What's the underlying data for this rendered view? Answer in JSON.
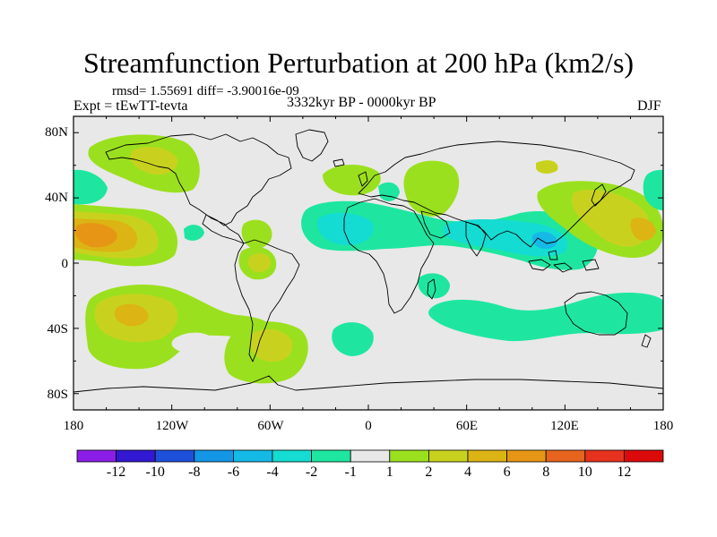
{
  "title": "Streamfunction Perturbation at 200 hPa (km2/s)",
  "stats": "rmsd= 1.55691 diff= -3.90016e-09",
  "expt": "Expt = tEwTT-tevta",
  "period": "3332kyr BP - 0000kyr BP",
  "season": "DJF",
  "y_ticks": [
    "80N",
    "40N",
    "0",
    "40S",
    "80S"
  ],
  "x_ticks": [
    "180",
    "120W",
    "60W",
    "0",
    "60E",
    "120E",
    "180"
  ],
  "colorbar": {
    "labels": [
      "-12",
      "-10",
      "-8",
      "-6",
      "-4",
      "-2",
      "-1",
      "1",
      "2",
      "4",
      "6",
      "8",
      "10",
      "12"
    ],
    "colors": [
      "#8a1ee6",
      "#3218d2",
      "#1e50dc",
      "#1496e6",
      "#14b9e6",
      "#14dcd2",
      "#1ee6a0",
      "#e8e8e8",
      "#9be01e",
      "#c8d21e",
      "#dcb414",
      "#e69614",
      "#e6641e",
      "#e6321e",
      "#dc0a0a"
    ]
  },
  "chart_data": {
    "type": "contour-map",
    "variable": "Streamfunction Perturbation at 200 hPa",
    "units": "km2/s",
    "x_range_deg": [
      -180,
      180
    ],
    "y_range_deg": [
      -90,
      90
    ],
    "levels": [
      -12,
      -10,
      -8,
      -6,
      -4,
      -2,
      -1,
      1,
      2,
      4,
      6,
      8,
      10,
      12
    ],
    "features": [
      {
        "name": "north-pacific-subtropical-high",
        "lon": -165,
        "lat": 18,
        "value": 6
      },
      {
        "name": "south-pacific-high",
        "lon": -142,
        "lat": -28,
        "value": 4
      },
      {
        "name": "north-pacific-high",
        "lon": -140,
        "lat": 63,
        "value": 4
      },
      {
        "name": "south-america-high",
        "lon": -53,
        "lat": -45,
        "value": 4
      },
      {
        "name": "north-atlantic-high",
        "lon": -3,
        "lat": 50,
        "value": 2
      },
      {
        "name": "europe-high",
        "lon": 35,
        "lat": 55,
        "value": 2
      },
      {
        "name": "japan-high",
        "lon": 142,
        "lat": 40,
        "value": 4
      },
      {
        "name": "atlantic-tropical-low",
        "lon": -20,
        "lat": 22,
        "value": -2
      },
      {
        "name": "south-asia-low",
        "lon": 90,
        "lat": 22,
        "value": -2
      },
      {
        "name": "indian-ocean-low",
        "lon": 80,
        "lat": -30,
        "value": -2
      },
      {
        "name": "south-atlantic-low",
        "lon": -15,
        "lat": -40,
        "value": -2
      },
      {
        "name": "north-pacific-low",
        "lon": -170,
        "lat": 52,
        "value": -2
      },
      {
        "name": "west-europe-low",
        "lon": 8,
        "lat": 45,
        "value": -2
      }
    ]
  }
}
